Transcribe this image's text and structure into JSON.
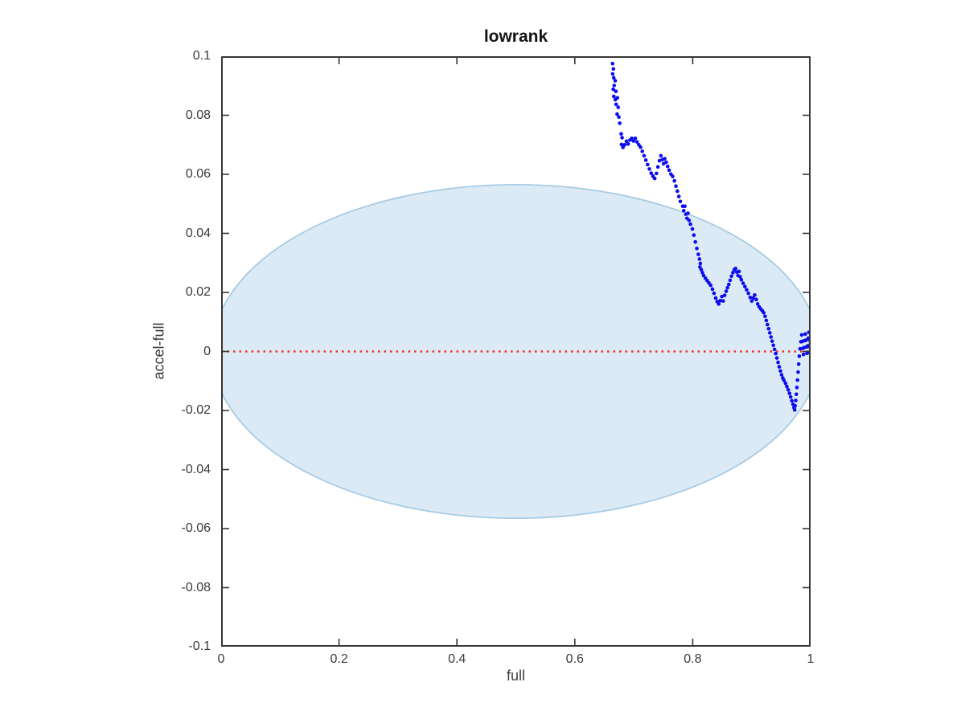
{
  "figure": {
    "title": "lowrank",
    "xlabel": "full",
    "ylabel": "accel-full"
  },
  "colors": {
    "background": "#ffffff",
    "axis": "#363636",
    "tick_text": "#3a3a3a",
    "title_text": "#141414",
    "scatter_blue": "#0c0cf0",
    "zero_line_red": "#f2352b",
    "ellipse_fill": "#dceaf5",
    "ellipse_stroke": "#a8cce4"
  },
  "chart_data": {
    "type": "scatter",
    "title": "lowrank",
    "xlabel": "full",
    "ylabel": "accel-full",
    "xlim": [
      0,
      1
    ],
    "ylim": [
      -0.1,
      0.1
    ],
    "grid": false,
    "legend": null,
    "x_ticks": {
      "values": [
        0,
        0.2,
        0.4,
        0.6,
        0.8,
        1
      ],
      "labels": [
        "0",
        "0.2",
        "0.4",
        "0.6",
        "0.8",
        "1"
      ]
    },
    "y_ticks": {
      "values": [
        0.1,
        0.08,
        0.06,
        0.04,
        0.02,
        0,
        -0.02,
        -0.04,
        -0.06,
        -0.08,
        -0.1
      ],
      "labels": [
        "0.1",
        "0.08",
        "0.06",
        "0.04",
        "0.02",
        "0",
        "-0.02",
        "-0.04",
        "-0.06",
        "-0.08",
        "-0.1"
      ]
    },
    "elements": {
      "confidence_ellipse": {
        "shape": "ellipse",
        "cx": 0.5,
        "cy": 0,
        "rx": 0.515,
        "ry": 0.0565,
        "fill": "#dceaf5",
        "stroke": "#a8cce4",
        "clipped_to_axes": true
      },
      "zero_line": {
        "y": 0,
        "x_from": 0,
        "x_to": 1,
        "style": "dotted",
        "color": "#f2352b"
      },
      "trajectory": {
        "marker": "point",
        "color": "#0c0cf0",
        "points": [
          [
            0.664,
            0.0975
          ],
          [
            0.6655,
            0.0957
          ],
          [
            0.6642,
            0.094
          ],
          [
            0.666,
            0.0927
          ],
          [
            0.6685,
            0.0917
          ],
          [
            0.6668,
            0.0901
          ],
          [
            0.6652,
            0.0888
          ],
          [
            0.6697,
            0.0881
          ],
          [
            0.6662,
            0.0864
          ],
          [
            0.6687,
            0.0853
          ],
          [
            0.6722,
            0.0859
          ],
          [
            0.67,
            0.0837
          ],
          [
            0.6736,
            0.0827
          ],
          [
            0.6717,
            0.0804
          ],
          [
            0.6747,
            0.0794
          ],
          [
            0.6762,
            0.0773
          ],
          [
            0.6787,
            0.0737
          ],
          [
            0.6802,
            0.0724
          ],
          [
            0.6792,
            0.0701
          ],
          [
            0.6817,
            0.0691
          ],
          [
            0.6845,
            0.07
          ],
          [
            0.6875,
            0.0712
          ],
          [
            0.6905,
            0.0703
          ],
          [
            0.6935,
            0.0716
          ],
          [
            0.6965,
            0.0722
          ],
          [
            0.6995,
            0.0713
          ],
          [
            0.7025,
            0.0722
          ],
          [
            0.7055,
            0.071
          ],
          [
            0.7085,
            0.07
          ],
          [
            0.7115,
            0.0692
          ],
          [
            0.7145,
            0.0678
          ],
          [
            0.7175,
            0.0663
          ],
          [
            0.7205,
            0.0648
          ],
          [
            0.7235,
            0.0633
          ],
          [
            0.7265,
            0.0618
          ],
          [
            0.7295,
            0.0604
          ],
          [
            0.7325,
            0.0594
          ],
          [
            0.7355,
            0.0586
          ],
          [
            0.7385,
            0.0603
          ],
          [
            0.741,
            0.0625
          ],
          [
            0.7435,
            0.0646
          ],
          [
            0.746,
            0.0663
          ],
          [
            0.7485,
            0.065
          ],
          [
            0.7505,
            0.0636
          ],
          [
            0.7525,
            0.0653
          ],
          [
            0.755,
            0.0641
          ],
          [
            0.7575,
            0.0627
          ],
          [
            0.76,
            0.0614
          ],
          [
            0.763,
            0.0601
          ],
          [
            0.766,
            0.0593
          ],
          [
            0.769,
            0.0578
          ],
          [
            0.7715,
            0.056
          ],
          [
            0.774,
            0.0543
          ],
          [
            0.7765,
            0.0525
          ],
          [
            0.779,
            0.0508
          ],
          [
            0.783,
            0.0492
          ],
          [
            0.7848,
            0.0477
          ],
          [
            0.7866,
            0.0492
          ],
          [
            0.7884,
            0.0465
          ],
          [
            0.7902,
            0.0451
          ],
          [
            0.792,
            0.0468
          ],
          [
            0.7938,
            0.0444
          ],
          [
            0.7962,
            0.0431
          ],
          [
            0.7995,
            0.0415
          ],
          [
            0.802,
            0.0394
          ],
          [
            0.8045,
            0.0371
          ],
          [
            0.807,
            0.0349
          ],
          [
            0.8095,
            0.0329
          ],
          [
            0.8115,
            0.0313
          ],
          [
            0.813,
            0.0298
          ],
          [
            0.8122,
            0.0286
          ],
          [
            0.8145,
            0.0277
          ],
          [
            0.8165,
            0.0267
          ],
          [
            0.8185,
            0.0257
          ],
          [
            0.8215,
            0.0248
          ],
          [
            0.8245,
            0.024
          ],
          [
            0.8275,
            0.0232
          ],
          [
            0.8305,
            0.0224
          ],
          [
            0.8335,
            0.0211
          ],
          [
            0.8362,
            0.0197
          ],
          [
            0.839,
            0.0181
          ],
          [
            0.8415,
            0.0169
          ],
          [
            0.8442,
            0.0161
          ],
          [
            0.8468,
            0.0172
          ],
          [
            0.8495,
            0.0186
          ],
          [
            0.8518,
            0.0171
          ],
          [
            0.8542,
            0.019
          ],
          [
            0.8568,
            0.0204
          ],
          [
            0.859,
            0.0216
          ],
          [
            0.8612,
            0.0227
          ],
          [
            0.8635,
            0.0241
          ],
          [
            0.8658,
            0.0255
          ],
          [
            0.8682,
            0.0267
          ],
          [
            0.8705,
            0.0277
          ],
          [
            0.8728,
            0.0281
          ],
          [
            0.8748,
            0.0269
          ],
          [
            0.8768,
            0.0257
          ],
          [
            0.8786,
            0.0271
          ],
          [
            0.8805,
            0.0253
          ],
          [
            0.8825,
            0.0243
          ],
          [
            0.8855,
            0.0231
          ],
          [
            0.8885,
            0.022
          ],
          [
            0.8915,
            0.0209
          ],
          [
            0.8945,
            0.0197
          ],
          [
            0.8975,
            0.0183
          ],
          [
            0.9002,
            0.0171
          ],
          [
            0.9028,
            0.0181
          ],
          [
            0.9052,
            0.0191
          ],
          [
            0.9078,
            0.0176
          ],
          [
            0.9102,
            0.0161
          ],
          [
            0.9128,
            0.0151
          ],
          [
            0.9155,
            0.0144
          ],
          [
            0.918,
            0.0138
          ],
          [
            0.9205,
            0.0131
          ],
          [
            0.9228,
            0.0119
          ],
          [
            0.9248,
            0.0105
          ],
          [
            0.9268,
            0.0091
          ],
          [
            0.9288,
            0.0077
          ],
          [
            0.9308,
            0.0063
          ],
          [
            0.9328,
            0.0049
          ],
          [
            0.9348,
            0.0035
          ],
          [
            0.9368,
            0.0021
          ],
          [
            0.9388,
            0.0007
          ],
          [
            0.9408,
            -0.0007
          ],
          [
            0.9428,
            -0.0022
          ],
          [
            0.9448,
            -0.0037
          ],
          [
            0.9468,
            -0.0052
          ],
          [
            0.9488,
            -0.0066
          ],
          [
            0.9508,
            -0.0079
          ],
          [
            0.9528,
            -0.009
          ],
          [
            0.9548,
            -0.0098
          ],
          [
            0.9575,
            -0.0108
          ],
          [
            0.9598,
            -0.0119
          ],
          [
            0.962,
            -0.013
          ],
          [
            0.9642,
            -0.0142
          ],
          [
            0.9662,
            -0.0154
          ],
          [
            0.9682,
            -0.0167
          ],
          [
            0.9702,
            -0.0179
          ],
          [
            0.9718,
            -0.019
          ],
          [
            0.973,
            -0.0198
          ],
          [
            0.9738,
            -0.0184
          ],
          [
            0.9748,
            -0.0166
          ],
          [
            0.9758,
            -0.0145
          ],
          [
            0.9768,
            -0.0122
          ],
          [
            0.9778,
            -0.0097
          ],
          [
            0.9788,
            -0.007
          ],
          [
            0.9798,
            -0.0043
          ],
          [
            0.9808,
            -0.0016
          ],
          [
            0.9822,
            0.0009
          ],
          [
            0.9836,
            0.0033
          ],
          [
            0.985,
            0.0056
          ],
          [
            0.986,
            0.0034
          ],
          [
            0.987,
            0.0011
          ],
          [
            0.988,
            -0.001
          ],
          [
            0.989,
            0.0013
          ],
          [
            0.99,
            0.0037
          ],
          [
            0.991,
            0.0059
          ],
          [
            0.992,
            0.0038
          ],
          [
            0.993,
            0.0015
          ],
          [
            0.994,
            -0.0006
          ],
          [
            0.995,
            0.0019
          ],
          [
            0.996,
            0.0045
          ],
          [
            0.997,
            0.0065
          ],
          [
            0.9976,
            0.004
          ],
          [
            0.9982,
            0.0016
          ],
          [
            0.9988,
            -0.0004
          ],
          [
            0.9993,
            0.0023
          ],
          [
            0.9997,
            0.0047
          ],
          [
            1.0,
            0.003
          ],
          [
            1.0,
            0.0004
          ]
        ]
      }
    }
  }
}
